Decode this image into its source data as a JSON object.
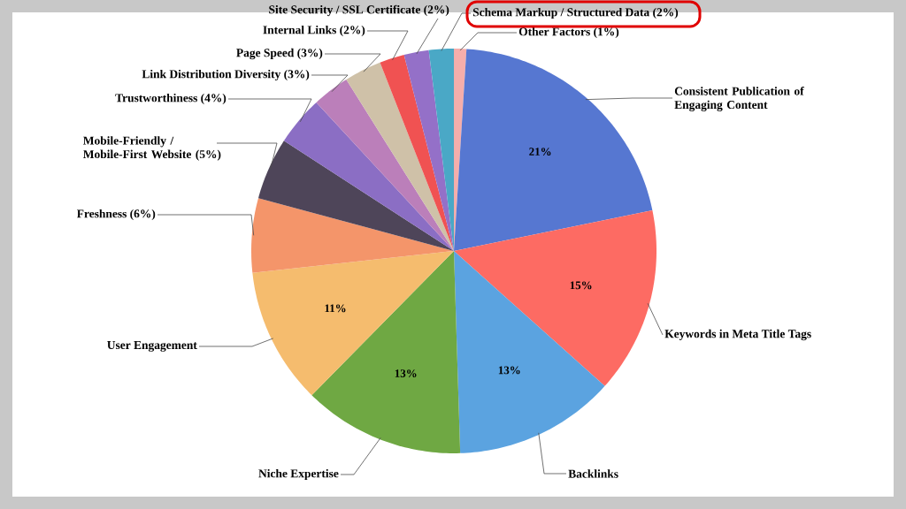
{
  "chart_data": {
    "type": "pie",
    "categories": [
      "Other Factors (1%)",
      "Consistent Publication of Engaging Content",
      "Keywords in Meta Title Tags",
      "Backlinks",
      "Niche Expertise",
      "User Engagement",
      "Freshness (6%)",
      "Mobile-Friendly / Mobile-First Website (5%)",
      "Trustworthiness (4%)",
      "Link Distribution Diversity (3%)",
      "Page Speed (3%)",
      "Internal Links (2%)",
      "Site Security / SSL Certificate (2%)",
      "Schema Markup / Structured Data (2%)"
    ],
    "values": [
      1,
      21,
      15,
      13,
      13,
      11,
      6,
      5,
      4,
      3,
      3,
      2,
      2,
      2
    ],
    "value_labels": [
      null,
      "21%",
      "15%",
      "13%",
      "13%",
      "11%",
      null,
      null,
      null,
      null,
      null,
      null,
      null,
      null
    ],
    "colors": [
      "#f5aeab",
      "#5677d1",
      "#fd6b63",
      "#5ba3e0",
      "#6fa843",
      "#f5bc6e",
      "#f4956a",
      "#4e4559",
      "#8b6ec4",
      "#bb7fba",
      "#cfc1a8",
      "#f05252",
      "#9470c8",
      "#4aa8c6"
    ]
  }
}
